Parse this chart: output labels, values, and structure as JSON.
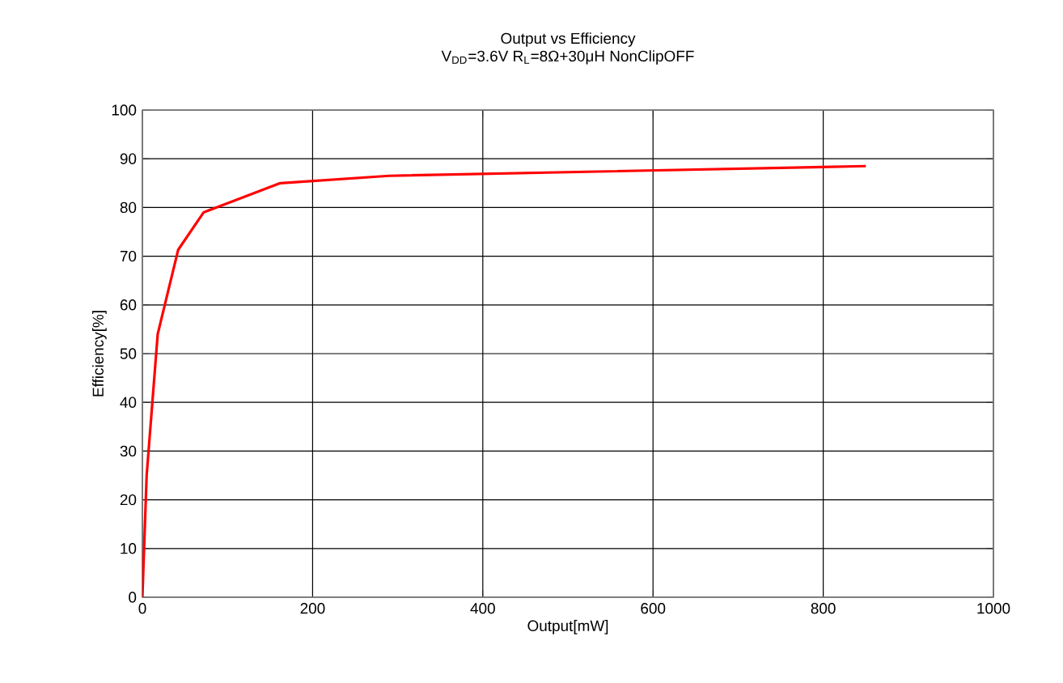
{
  "chart_data": {
    "type": "line",
    "title": "Output vs Efficiency",
    "subtitle": "V$_{DD}$=3.6V R$_{L}$=8Ω+30μH NonClipOFF",
    "xlabel": "Output[mW]",
    "ylabel": "Efficiency[%]",
    "x": [
      0,
      5,
      18,
      42,
      72,
      162,
      290,
      850
    ],
    "series": [
      {
        "color": "#ff0000",
        "values": [
          0,
          25,
          54,
          71.3,
          79,
          85,
          86.5,
          88.5
        ]
      }
    ],
    "xlim": [
      0,
      1000
    ],
    "ylim": [
      0,
      100
    ],
    "xticks": [
      0,
      200,
      400,
      600,
      800,
      1000
    ],
    "yticks": [
      0,
      10,
      20,
      30,
      40,
      50,
      60,
      70,
      80,
      90,
      100
    ],
    "grid": true,
    "marker": "none",
    "line_style": "solid"
  }
}
